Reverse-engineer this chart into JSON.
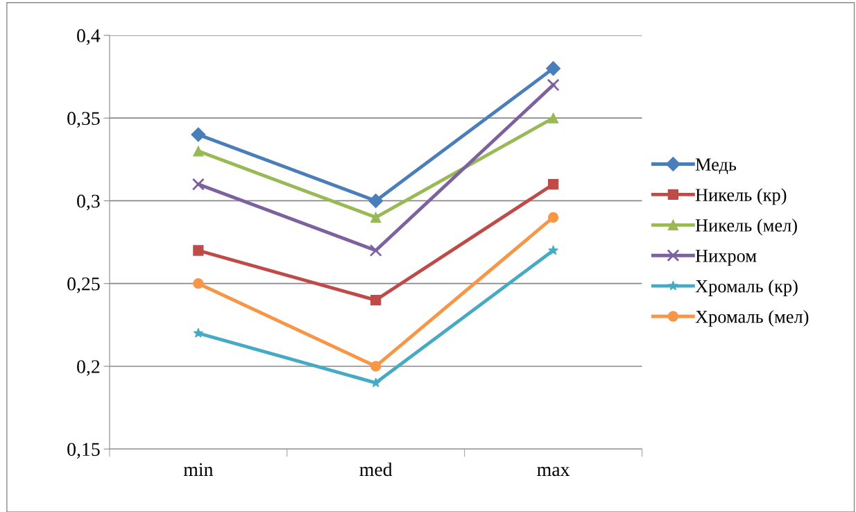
{
  "chart_data": {
    "type": "line",
    "categories": [
      "min",
      "med",
      "max"
    ],
    "series": [
      {
        "name": "Медь",
        "color": "#4a7ebb",
        "marker": "diamond",
        "values": [
          0.34,
          0.3,
          0.38
        ]
      },
      {
        "name": "Никель (кр)",
        "color": "#be4b48",
        "marker": "square",
        "values": [
          0.27,
          0.24,
          0.31
        ]
      },
      {
        "name": "Никель (мел)",
        "color": "#98b954",
        "marker": "triangle",
        "values": [
          0.33,
          0.29,
          0.35
        ]
      },
      {
        "name": "Нихром",
        "color": "#7d60a0",
        "marker": "cross",
        "values": [
          0.31,
          0.27,
          0.37
        ]
      },
      {
        "name": "Хромаль (кр)",
        "color": "#46aac5",
        "marker": "star",
        "values": [
          0.22,
          0.19,
          0.27
        ]
      },
      {
        "name": "Хромаль (мел)",
        "color": "#f79646",
        "marker": "circle",
        "values": [
          0.25,
          0.2,
          0.29
        ]
      }
    ],
    "ylim": [
      0.15,
      0.4
    ],
    "yticks": [
      {
        "value": 0.15,
        "label": "0,15"
      },
      {
        "value": 0.2,
        "label": "0,2"
      },
      {
        "value": 0.25,
        "label": "0,25"
      },
      {
        "value": 0.3,
        "label": "0,3"
      },
      {
        "value": 0.35,
        "label": "0,35"
      },
      {
        "value": 0.4,
        "label": "0,4"
      }
    ],
    "grid": "y",
    "legend": "right",
    "line_style": "solid"
  }
}
